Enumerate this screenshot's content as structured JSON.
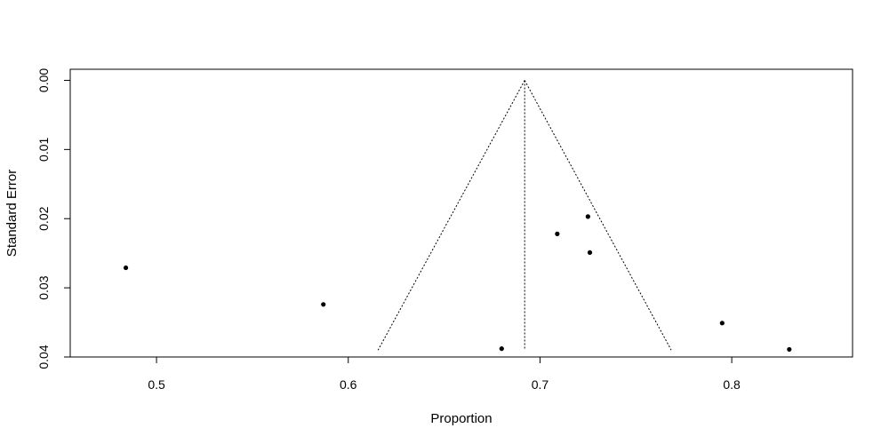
{
  "chart_data": {
    "type": "scatter",
    "title": "",
    "xlabel": "Proportion",
    "ylabel": "Standard Error",
    "xlim": [
      0.455,
      0.863
    ],
    "ylim": [
      0.04,
      -0.0016
    ],
    "y_reversed": true,
    "x_ticks": [
      0.5,
      0.6,
      0.7,
      0.8
    ],
    "x_tick_labels": [
      "0.5",
      "0.6",
      "0.7",
      "0.8"
    ],
    "y_ticks": [
      0.0,
      0.01,
      0.02,
      0.03,
      0.04
    ],
    "y_tick_labels": [
      "0.00",
      "0.01",
      "0.02",
      "0.03",
      "0.04"
    ],
    "grid": false,
    "legend": "none",
    "points": [
      {
        "x": 0.484,
        "y": 0.0271
      },
      {
        "x": 0.587,
        "y": 0.0324
      },
      {
        "x": 0.68,
        "y": 0.0388
      },
      {
        "x": 0.709,
        "y": 0.0222
      },
      {
        "x": 0.725,
        "y": 0.0197
      },
      {
        "x": 0.726,
        "y": 0.0249
      },
      {
        "x": 0.795,
        "y": 0.0351
      },
      {
        "x": 0.83,
        "y": 0.0389
      }
    ],
    "pooled_estimate": 0.692,
    "funnel_se_max": 0.039,
    "funnel_z": 1.96,
    "colors": {
      "points": "#000000",
      "lines": "#000000",
      "background": "#ffffff"
    }
  }
}
